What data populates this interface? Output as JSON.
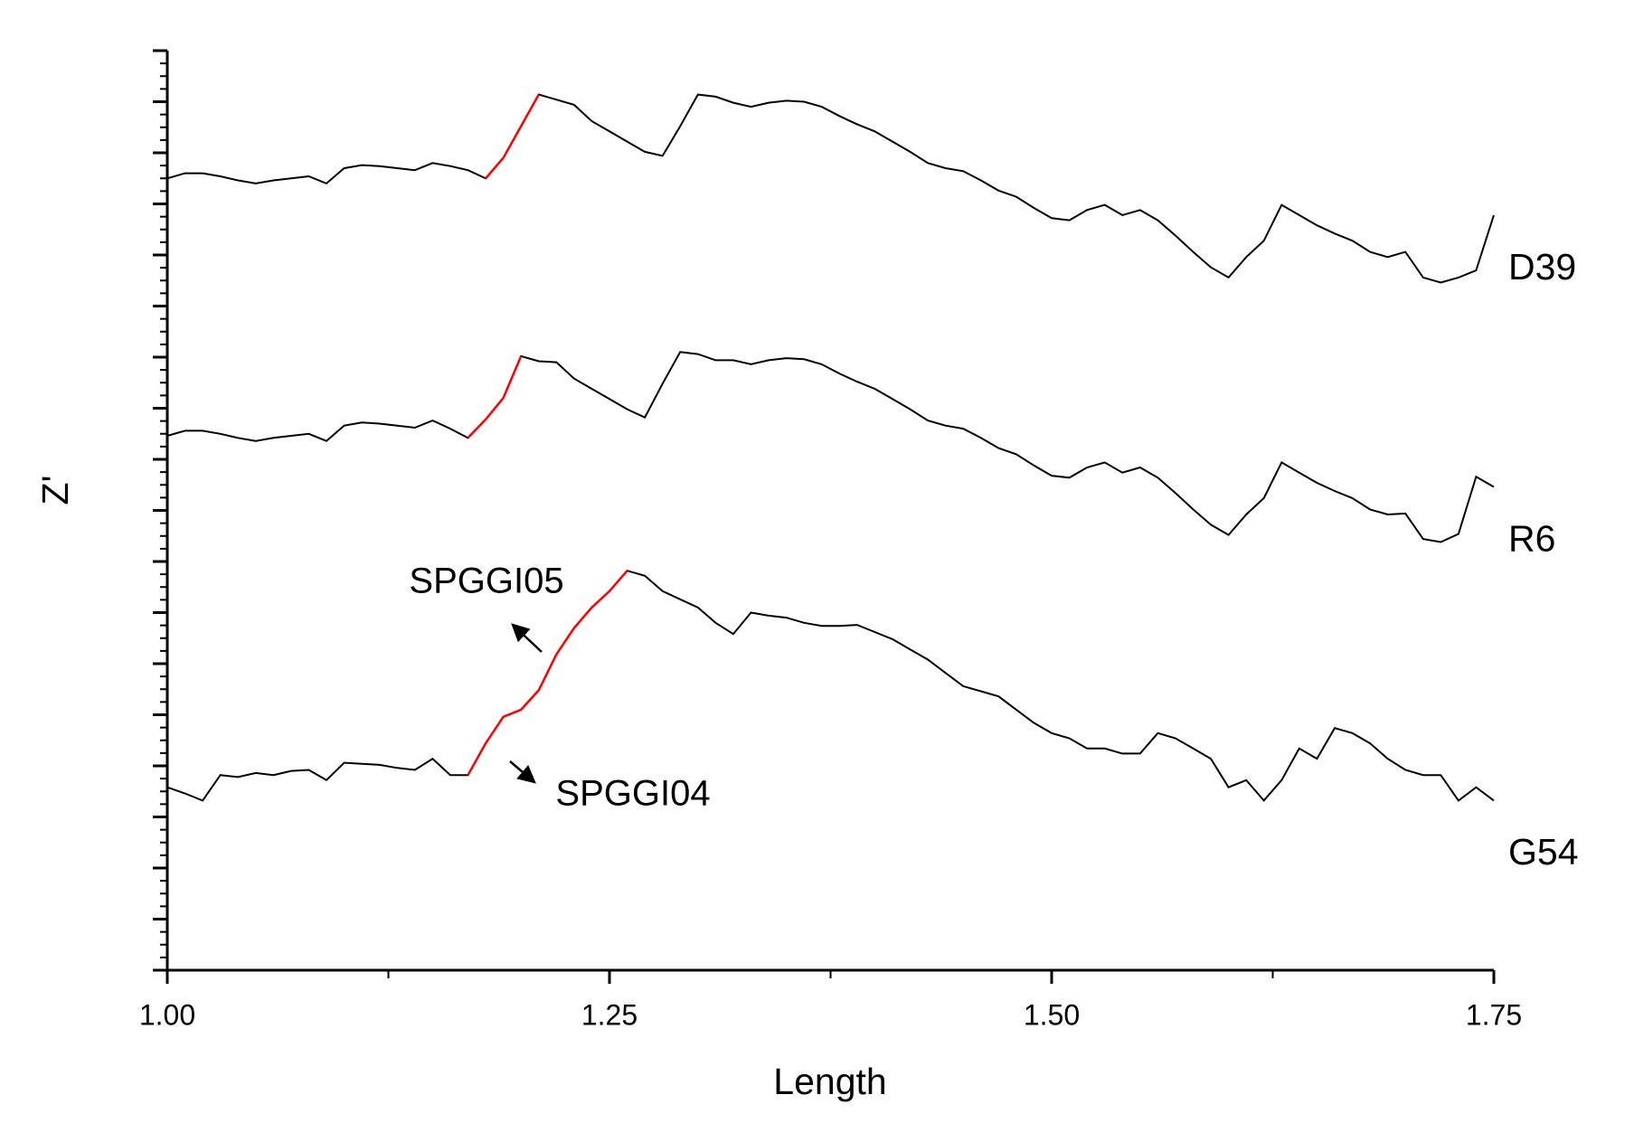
{
  "chart_data": {
    "type": "line",
    "xlabel": "Length",
    "ylabel": "Z'",
    "xlim": [
      1,
      1.75
    ],
    "xticks": [
      {
        "value": 1,
        "label": "1.00"
      },
      {
        "value": 1.25,
        "label": "1.25"
      },
      {
        "value": 1.5,
        "label": "1.50"
      },
      {
        "value": 1.75,
        "label": "1.75"
      }
    ],
    "ylim": [
      0,
      900
    ],
    "yticks": [
      0,
      50,
      100,
      150,
      200,
      250,
      300,
      350,
      400,
      450,
      500,
      550,
      600,
      650,
      700,
      750,
      800,
      850,
      900
    ],
    "ytick_labels": false,
    "x": [
      1.0,
      1.01,
      1.02,
      1.03,
      1.04,
      1.05,
      1.06,
      1.07,
      1.08,
      1.09,
      1.1,
      1.11,
      1.12,
      1.13,
      1.14,
      1.15,
      1.16,
      1.17,
      1.18,
      1.19,
      1.2,
      1.21,
      1.22,
      1.23,
      1.24,
      1.25,
      1.26,
      1.27,
      1.28,
      1.29,
      1.3,
      1.31,
      1.32,
      1.33,
      1.34,
      1.35,
      1.36,
      1.37,
      1.38,
      1.39,
      1.4,
      1.41,
      1.42,
      1.43,
      1.44,
      1.45,
      1.46,
      1.47,
      1.48,
      1.49,
      1.5,
      1.51,
      1.52,
      1.53,
      1.54,
      1.55,
      1.56,
      1.57,
      1.58,
      1.59,
      1.6,
      1.61,
      1.62,
      1.63,
      1.64,
      1.65,
      1.66,
      1.67,
      1.68,
      1.69,
      1.7,
      1.71,
      1.72,
      1.73,
      1.74,
      1.75
    ],
    "series": [
      {
        "name": "D39",
        "color": "#000000",
        "highlight_color": "#ff0000",
        "highlight_range": [
          1.18,
          1.21
        ],
        "values": [
          775,
          780,
          780,
          777,
          773,
          770,
          773,
          775,
          777,
          770,
          785,
          788,
          787,
          785,
          783,
          790,
          787,
          783,
          775,
          795,
          826,
          857,
          852,
          847,
          831,
          821,
          811,
          801,
          797,
          826,
          857,
          855,
          849,
          845,
          849,
          851,
          850,
          845,
          836,
          828,
          821,
          811,
          801,
          790,
          785,
          782,
          773,
          763,
          757,
          746,
          736,
          734,
          744,
          749,
          739,
          744,
          734,
          719,
          703,
          688,
          678,
          698,
          714,
          749,
          739,
          729,
          721,
          714,
          703,
          698,
          703,
          678,
          673,
          678,
          685,
          739
        ]
      },
      {
        "name": "R6",
        "color": "#000000",
        "highlight_color": "#ff0000",
        "highlight_range": [
          1.17,
          1.2
        ],
        "values": [
          523,
          528,
          528,
          525,
          521,
          518,
          521,
          523,
          525,
          518,
          533,
          536,
          535,
          533,
          531,
          538,
          530,
          521,
          539,
          560,
          601,
          596,
          595,
          579,
          569,
          559,
          549,
          541,
          574,
          605,
          603,
          597,
          597,
          593,
          597,
          599,
          598,
          593,
          584,
          576,
          569,
          559,
          549,
          538,
          533,
          530,
          521,
          511,
          505,
          494,
          484,
          482,
          492,
          497,
          487,
          492,
          482,
          467,
          451,
          436,
          426,
          446,
          462,
          497,
          487,
          477,
          469,
          462,
          451,
          446,
          447,
          422,
          419,
          427,
          483,
          473
        ]
      },
      {
        "name": "G54",
        "color": "#000000",
        "highlight_color": "#ff0000",
        "highlight_range": [
          1.17,
          1.26
        ],
        "values": [
          179,
          173,
          166,
          191,
          189,
          193,
          191,
          195,
          196,
          186,
          203,
          202,
          201,
          198,
          196,
          207,
          191,
          191,
          222,
          248,
          255,
          274,
          309,
          335,
          355,
          371,
          391,
          386,
          371,
          363,
          355,
          340,
          329,
          350,
          347,
          345,
          340,
          337,
          337,
          338,
          331,
          324,
          314,
          304,
          291,
          278,
          273,
          268,
          255,
          242,
          232,
          227,
          217,
          217,
          212,
          212,
          232,
          227,
          217,
          207,
          179,
          186,
          166,
          186,
          217,
          207,
          237,
          232,
          222,
          207,
          196,
          191,
          191,
          166,
          179,
          166
        ]
      }
    ],
    "annotations": [
      "SPGGI05",
      "SPGGI04"
    ]
  }
}
